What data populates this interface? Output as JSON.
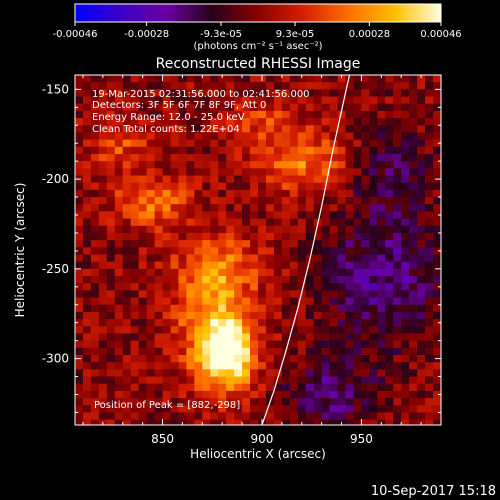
{
  "title": "Reconstructed RHESSI Image",
  "colorbar": {
    "tick_labels": [
      "-0.00046",
      "-0.00028",
      "-9.3e-05",
      "9.3e-05",
      "0.00028",
      "0.00046"
    ],
    "tick_values": [
      -0.00046,
      -0.00028,
      -9.3e-05,
      9.3e-05,
      0.00028,
      0.00046
    ],
    "range": [
      -0.00046,
      0.00046
    ],
    "unit_label": "(photons cm⁻² s⁻¹ asec⁻²)",
    "colormap": [
      "#0000ff",
      "#3a00c8",
      "#6a00a0",
      "#280018",
      "#8a0000",
      "#d82000",
      "#ff7000",
      "#ffc000",
      "#ffffe0"
    ]
  },
  "annotation": {
    "time_range": "19-Mar-2015 02:31:56.000 to 02:41:56.000",
    "detectors": "Detectors: 3F 5F 6F 7F 8F 9F, Att 0",
    "energy": "Energy Range: 12.0 - 25.0 keV",
    "clean": "Clean     Total counts: 1.22E+04",
    "peak": "Position of Peak = [882,-298]"
  },
  "footer_timestamp": "10-Sep-2017 15:18",
  "chart_data": {
    "type": "heatmap",
    "title": "Reconstructed RHESSI Image",
    "xlabel": "Heliocentric X (arcsec)",
    "ylabel": "Heliocentric Y (arcsec)",
    "xlim": [
      806,
      990
    ],
    "ylim": [
      -337,
      -142
    ],
    "x_ticks": [
      850,
      900,
      950
    ],
    "x_tick_labels": [
      "850",
      "900",
      "950"
    ],
    "y_ticks": [
      -150,
      -200,
      -250,
      -300
    ],
    "y_tick_labels": [
      "-150",
      "-200",
      "-250",
      "-300"
    ],
    "peak_position": [
      882,
      -298
    ],
    "value_range": [
      -0.00046,
      0.00046
    ],
    "sources": [
      {
        "x": 882,
        "y": -298,
        "amp": 0.00046,
        "sx": 10,
        "sy": 14
      },
      {
        "x": 876,
        "y": -280,
        "amp": 0.00026,
        "sx": 14,
        "sy": 20
      },
      {
        "x": 845,
        "y": -213,
        "amp": 0.00022,
        "sx": 14,
        "sy": 10
      },
      {
        "x": 878,
        "y": -248,
        "amp": 0.0002,
        "sx": 16,
        "sy": 12
      },
      {
        "x": 920,
        "y": -190,
        "amp": 0.00024,
        "sx": 16,
        "sy": 12
      },
      {
        "x": 828,
        "y": -180,
        "amp": 0.00016,
        "sx": 12,
        "sy": 10
      },
      {
        "x": 900,
        "y": -168,
        "amp": 0.00014,
        "sx": 12,
        "sy": 8
      },
      {
        "x": 960,
        "y": -255,
        "amp": -0.00022,
        "sx": 20,
        "sy": 25
      },
      {
        "x": 935,
        "y": -320,
        "amp": -0.00018,
        "sx": 16,
        "sy": 14
      },
      {
        "x": 965,
        "y": -195,
        "amp": -0.00014,
        "sx": 14,
        "sy": 16
      }
    ],
    "limb_curve": {
      "x": [
        900,
        906,
        912,
        918,
        924,
        930,
        936,
        942,
        944
      ],
      "y": [
        -337,
        -318,
        -296,
        -272,
        -245,
        -215,
        -182,
        -152,
        -142
      ]
    }
  }
}
